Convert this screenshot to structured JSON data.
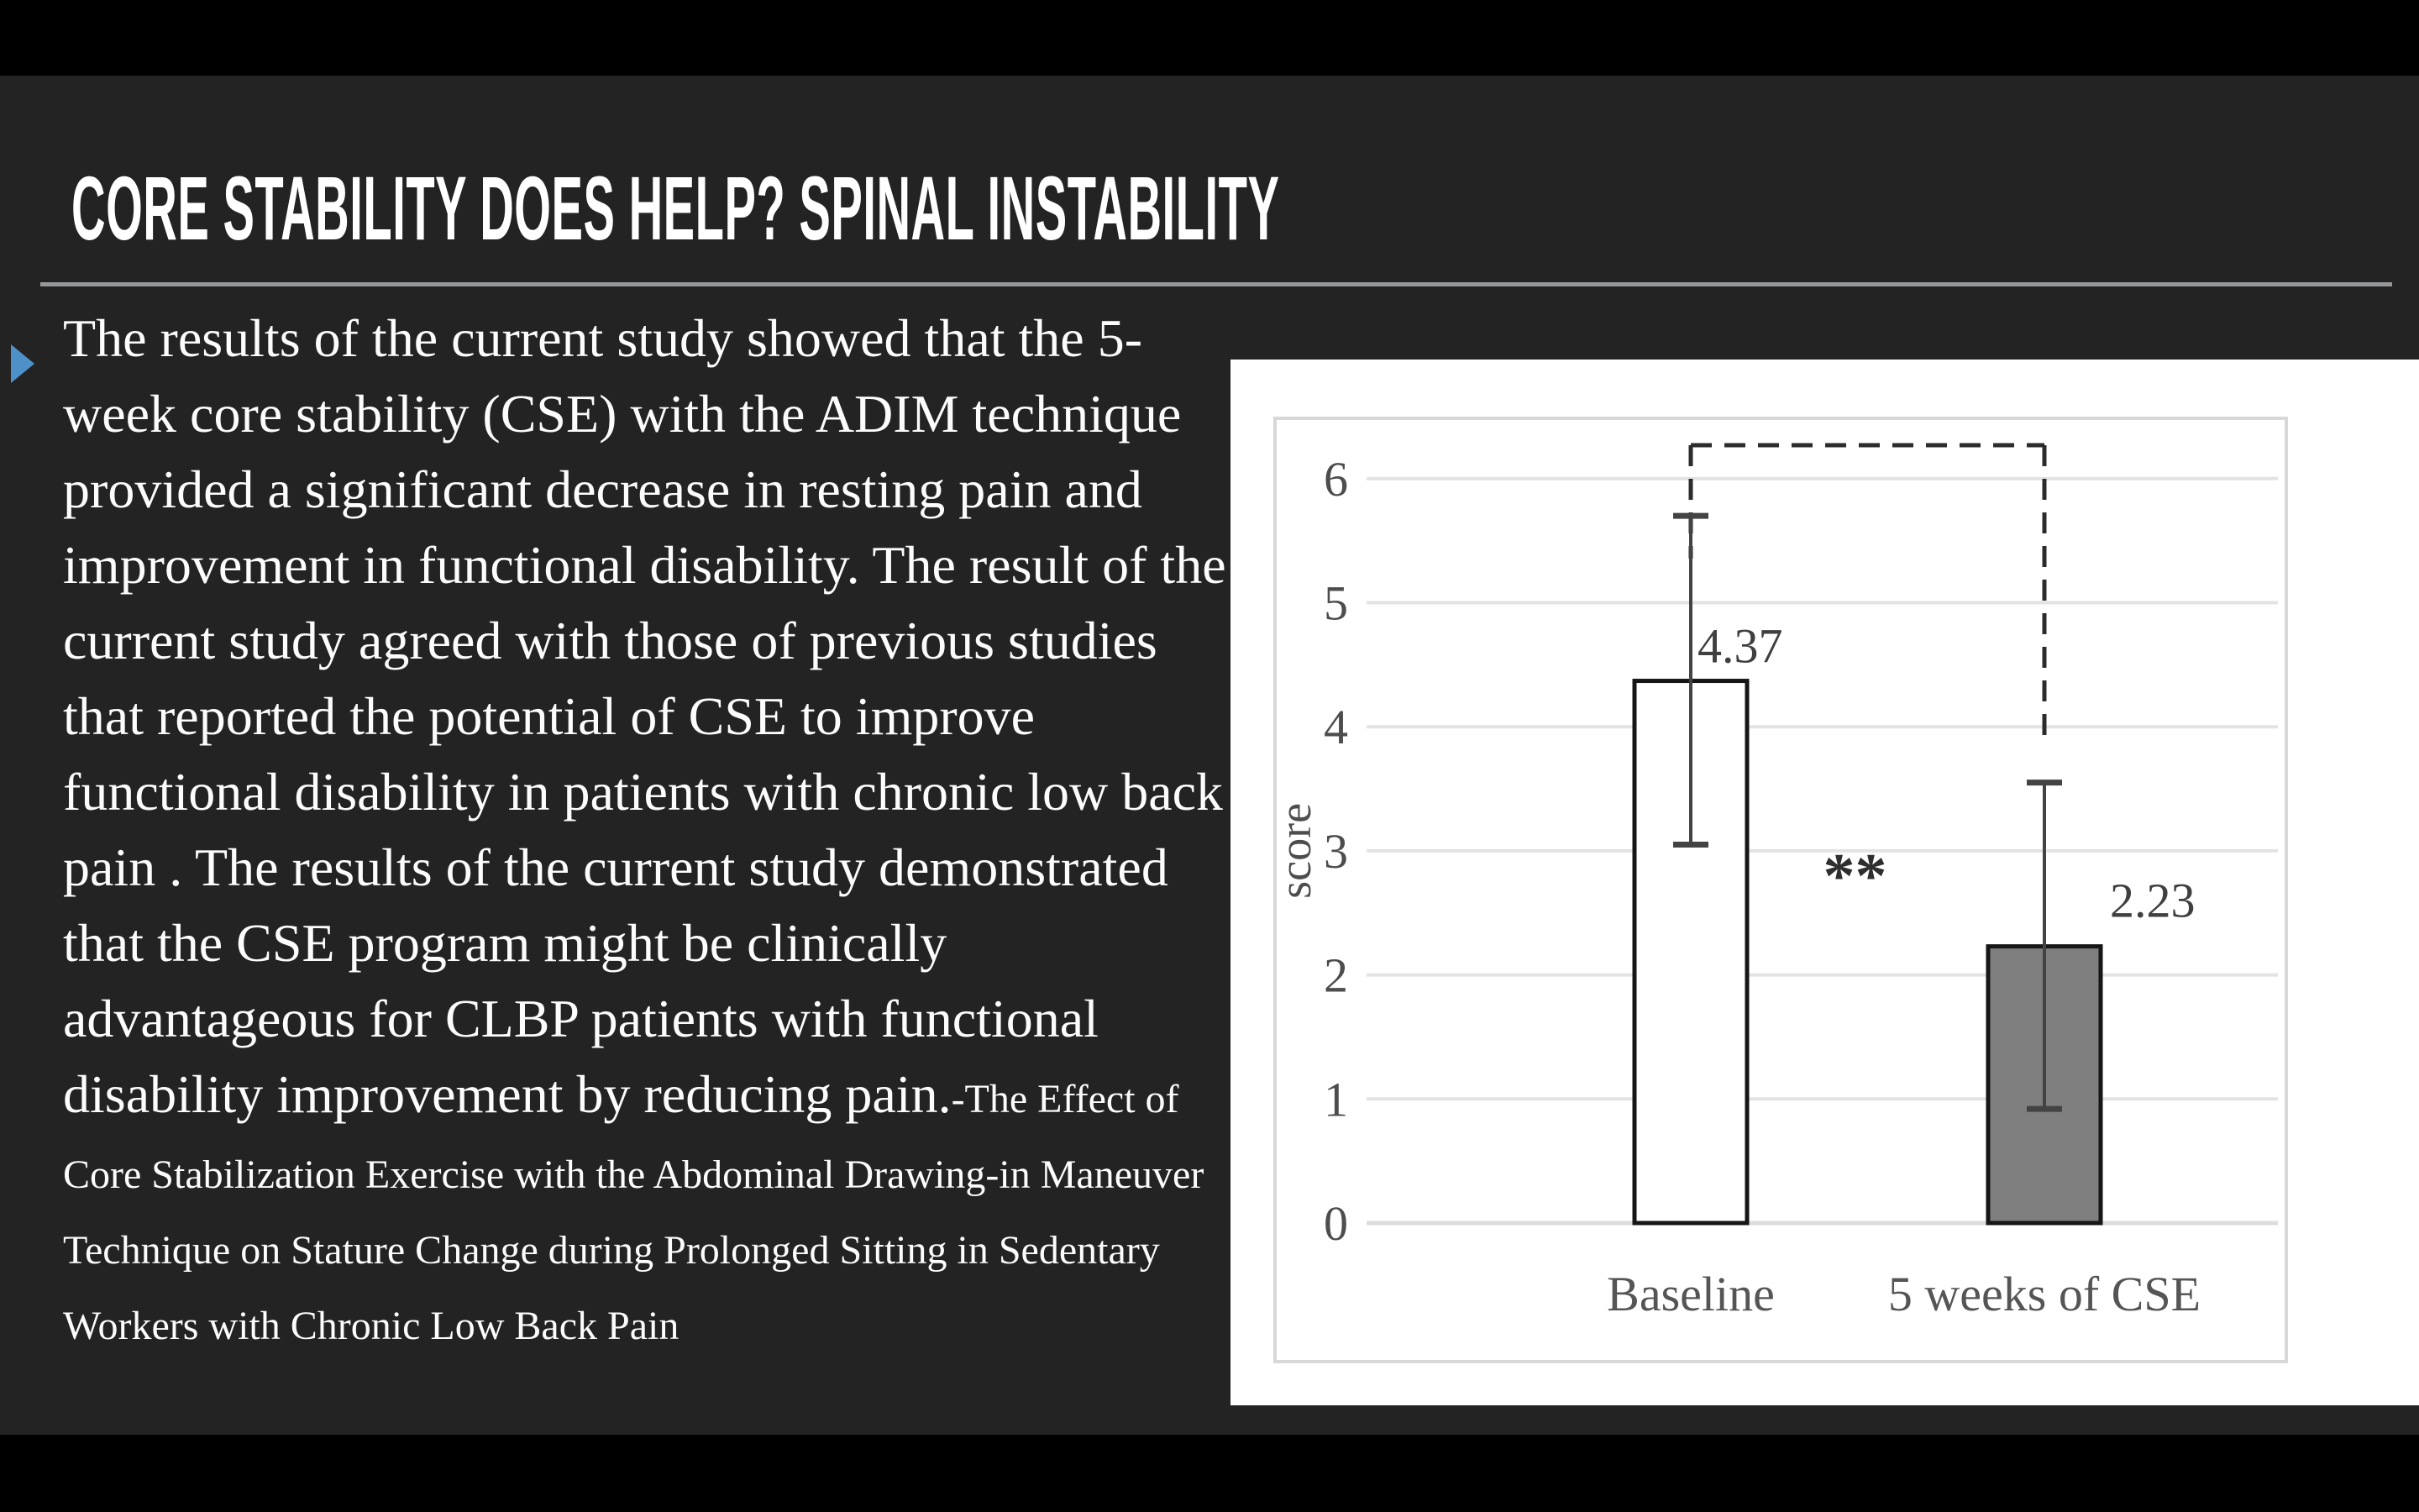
{
  "slide": {
    "title": "CORE STABILITY DOES HELP? SPINAL INSTABILITY"
  },
  "body": {
    "main_text": "The results of the current study showed that the 5-week core stability (CSE) with the ADIM technique provided a significant decrease in resting pain and improvement in functional disability. The result of the current study agreed with those of previous studies that reported the potential of CSE to improve functional disability in patients with chronic low back pain . The results of the current study demonstrated that the CSE program might be clinically advantageous for CLBP patients with functional disability improvement by reducing pain.",
    "citation_text": "-The Effect of Core Stabilization Exercise with the Abdominal Drawing-in Maneuver Technique on Stature Change during Prolonged Sitting in Sedentary Workers with Chronic Low Back Pain"
  },
  "chart_data": {
    "type": "bar",
    "title": "",
    "xlabel": "",
    "ylabel": "score",
    "categories": [
      "Baseline",
      "5 weeks of CSE"
    ],
    "values": [
      4.37,
      2.23
    ],
    "value_labels": [
      "4.37",
      "2.23"
    ],
    "error_top": [
      5.7,
      3.55
    ],
    "error_bottom": [
      3.05,
      0.92
    ],
    "bar_fills": [
      "#ffffff",
      "#7f7f7f"
    ],
    "ylim": [
      0,
      6
    ],
    "yticks": [
      0,
      1,
      2,
      3,
      4,
      5,
      6
    ],
    "grid": true,
    "legend_position": "none",
    "significance_marker": "**",
    "significance_bracket": {
      "from": "Baseline",
      "to": "5 weeks of CSE",
      "style": "dashed"
    }
  },
  "colors": {
    "letterbox": "#000000",
    "slide_background": "#232323",
    "title_text": "#ffffff",
    "title_underline": "#97989a",
    "bullet_accent": "#4e90c8",
    "body_text": "#fcfcfc",
    "chart_panel": "#ffffff",
    "chart_frame": "#d8d8d8",
    "gridline": "#e3e3e3",
    "axis_text": "#4d4d4d",
    "bar_outline": "#161616",
    "error_bar": "#434343",
    "bracket": "#2b2b2b"
  }
}
